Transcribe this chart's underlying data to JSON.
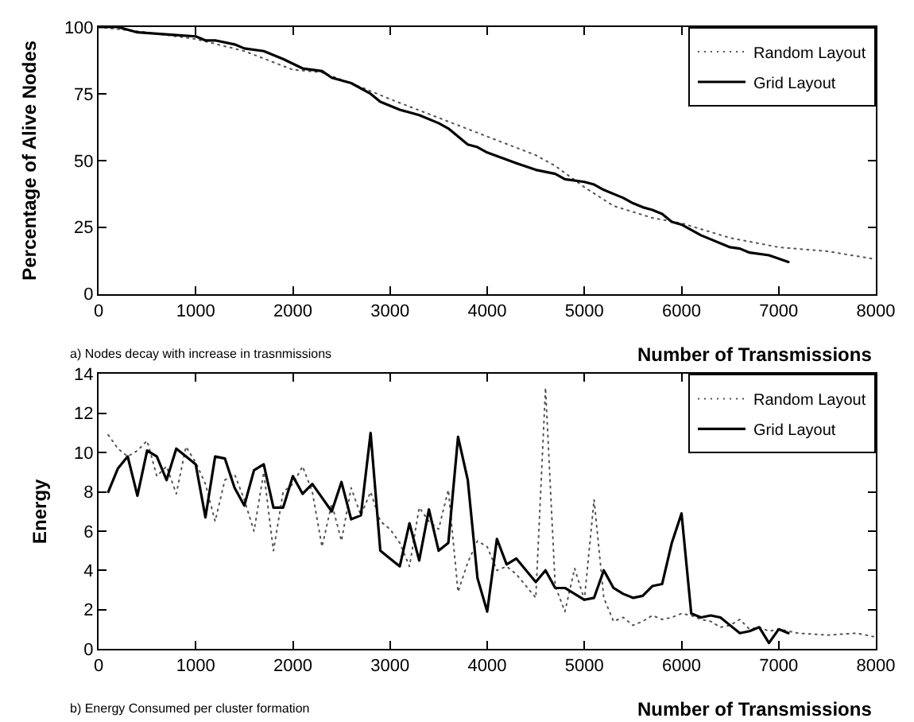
{
  "chart_data": [
    {
      "type": "line",
      "xlabel": "Number of Transmissions",
      "ylabel": "Percentage of Alive Nodes",
      "annotations": [
        "a) Nodes decay with increase in trasnmissions"
      ],
      "xlim": [
        0,
        8000
      ],
      "ylim": [
        0,
        100
      ],
      "xticks": [
        0,
        1000,
        2000,
        3000,
        4000,
        5000,
        6000,
        7000,
        8000
      ],
      "yticks": [
        0,
        25,
        50,
        75,
        100
      ],
      "grid": false,
      "legend": "top right",
      "marker": "none",
      "series": [
        {
          "name": "Random Layout",
          "color": "#555555",
          "line_style": "dotted",
          "x": [
            0,
            500,
            1000,
            1500,
            2000,
            2300,
            2700,
            3000,
            3500,
            4000,
            4500,
            4700,
            5000,
            5300,
            5700,
            6000,
            6500,
            7000,
            7500,
            8000
          ],
          "values": [
            100,
            98,
            95.5,
            91,
            84,
            83,
            77.5,
            73,
            66,
            59,
            52,
            48,
            40,
            33,
            28.5,
            26.5,
            21,
            17.5,
            16,
            13
          ]
        },
        {
          "name": "Grid Layout",
          "color": "#000000",
          "line_style": "solid",
          "x": [
            0,
            200,
            400,
            600,
            800,
            1000,
            1100,
            1200,
            1400,
            1500,
            1700,
            1900,
            2100,
            2300,
            2400,
            2600,
            2800,
            2900,
            3100,
            3300,
            3500,
            3600,
            3800,
            3900,
            4000,
            4300,
            4500,
            4700,
            4800,
            5000,
            5100,
            5200,
            5400,
            5500,
            5600,
            5700,
            5800,
            5900,
            6000,
            6200,
            6500,
            6600,
            6700,
            6900,
            7100
          ],
          "values": [
            100,
            100,
            98,
            97.5,
            97,
            96.5,
            95,
            95,
            93.5,
            92,
            91,
            88,
            84.5,
            83.5,
            81,
            79,
            75,
            72,
            69,
            67,
            64,
            62,
            56,
            55,
            53,
            49,
            46.5,
            45,
            43,
            42,
            41,
            39,
            36,
            34,
            32.5,
            31.5,
            30,
            27,
            26,
            22,
            17.5,
            17,
            15.5,
            14.5,
            12
          ]
        }
      ]
    },
    {
      "type": "line",
      "xlabel": "Number of Transmissions",
      "ylabel": "Energy",
      "annotations": [
        "b) Energy Consumed per cluster formation"
      ],
      "xlim": [
        0,
        8000
      ],
      "ylim": [
        0,
        14
      ],
      "xticks": [
        0,
        1000,
        2000,
        3000,
        4000,
        5000,
        6000,
        7000,
        8000
      ],
      "yticks": [
        0,
        2,
        4,
        6,
        8,
        10,
        12,
        14
      ],
      "grid": false,
      "legend": "top right",
      "marker": "none",
      "series": [
        {
          "name": "Random Layout",
          "color": "#555555",
          "line_style": "dotted",
          "x": [
            100,
            200,
            300,
            400,
            500,
            600,
            700,
            800,
            900,
            1000,
            1100,
            1200,
            1300,
            1400,
            1500,
            1600,
            1700,
            1800,
            1900,
            2000,
            2100,
            2200,
            2300,
            2400,
            2500,
            2600,
            2700,
            2800,
            2900,
            3000,
            3100,
            3200,
            3300,
            3400,
            3500,
            3600,
            3700,
            3800,
            3900,
            4000,
            4100,
            4200,
            4300,
            4400,
            4500,
            4600,
            4700,
            4800,
            4900,
            5000,
            5100,
            5200,
            5300,
            5400,
            5500,
            5600,
            5700,
            5800,
            5900,
            6000,
            6100,
            6200,
            6300,
            6400,
            6500,
            6600,
            6700,
            6800,
            6900,
            7000,
            7200,
            7500,
            7800,
            8000
          ],
          "values": [
            10.9,
            10.2,
            9.8,
            10.1,
            10.6,
            8.8,
            9.3,
            7.9,
            10.3,
            9.5,
            8.4,
            6.5,
            8.6,
            8.9,
            7.6,
            6.0,
            9.0,
            5.0,
            8.0,
            8.4,
            9.3,
            8.0,
            5.2,
            7.4,
            5.5,
            8.2,
            6.8,
            8.0,
            6.5,
            6.1,
            5.4,
            4.2,
            7.2,
            6.5,
            6.1,
            8.1,
            2.9,
            4.4,
            5.5,
            5.2,
            4.0,
            4.2,
            3.8,
            3.2,
            2.6,
            13.3,
            3.2,
            1.9,
            4.1,
            2.5,
            7.6,
            2.6,
            1.4,
            1.6,
            1.2,
            1.4,
            1.7,
            1.5,
            1.6,
            1.8,
            1.7,
            1.5,
            1.4,
            1.1,
            1.2,
            1.5,
            1.0,
            1.1,
            0.9,
            1.0,
            0.8,
            0.7,
            0.8,
            0.6
          ]
        },
        {
          "name": "Grid Layout",
          "color": "#000000",
          "line_style": "solid",
          "x": [
            100,
            200,
            300,
            400,
            500,
            600,
            700,
            800,
            900,
            1000,
            1100,
            1200,
            1300,
            1400,
            1500,
            1600,
            1700,
            1800,
            1900,
            2000,
            2100,
            2200,
            2300,
            2400,
            2500,
            2600,
            2700,
            2800,
            2900,
            3000,
            3100,
            3200,
            3300,
            3400,
            3500,
            3600,
            3700,
            3800,
            3900,
            4000,
            4100,
            4200,
            4300,
            4400,
            4500,
            4600,
            4700,
            4800,
            4900,
            5000,
            5100,
            5200,
            5300,
            5400,
            5500,
            5600,
            5700,
            5800,
            5900,
            6000,
            6100,
            6200,
            6300,
            6400,
            6500,
            6600,
            6700,
            6800,
            6900,
            7000,
            7100
          ],
          "values": [
            8,
            9.2,
            9.8,
            7.8,
            10.1,
            9.8,
            8.6,
            10.2,
            9.8,
            9.4,
            6.7,
            9.8,
            9.7,
            8.2,
            7.3,
            9.1,
            9.4,
            7.2,
            7.2,
            8.8,
            7.9,
            8.4,
            7.7,
            7.0,
            8.5,
            6.6,
            6.8,
            11.0,
            5.0,
            4.6,
            4.2,
            6.4,
            4.5,
            7.1,
            5.0,
            5.4,
            10.8,
            8.6,
            3.6,
            1.9,
            5.6,
            4.3,
            4.6,
            4.0,
            3.4,
            4.0,
            3.1,
            3.1,
            2.8,
            2.5,
            2.6,
            4.0,
            3.1,
            2.8,
            2.6,
            2.7,
            3.2,
            3.3,
            5.4,
            6.9,
            1.8,
            1.6,
            1.7,
            1.6,
            1.2,
            0.8,
            0.9,
            1.1,
            0.3,
            1.0,
            0.8
          ]
        }
      ]
    }
  ]
}
